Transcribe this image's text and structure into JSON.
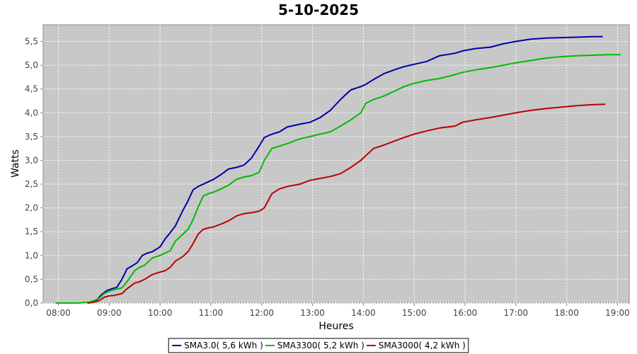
{
  "chart_data": {
    "type": "line",
    "title": "5-10-2025",
    "xlabel": "Heures",
    "ylabel": "Watts",
    "xlim": [
      7.7,
      19.23
    ],
    "ylim": [
      0,
      5.85
    ],
    "x_ticks": [
      "08:00",
      "09:00",
      "10:00",
      "11:00",
      "12:00",
      "13:00",
      "14:00",
      "15:00",
      "16:00",
      "17:00",
      "18:00",
      "19:00"
    ],
    "y_ticks": [
      "0,0",
      "0,5",
      "1,0",
      "1,5",
      "2,0",
      "2,5",
      "3,0",
      "3,5",
      "4,0",
      "4,5",
      "5,0",
      "5,5"
    ],
    "grid": true,
    "legend_position": "bottom-center",
    "series": [
      {
        "name": "SMA3.0( 5,6 kWh )",
        "color": "#0000aa",
        "x": [
          8.58,
          8.65,
          8.75,
          8.85,
          8.95,
          9.05,
          9.15,
          9.25,
          9.35,
          9.45,
          9.55,
          9.65,
          9.75,
          9.85,
          10.0,
          10.1,
          10.2,
          10.3,
          10.45,
          10.55,
          10.65,
          10.75,
          10.85,
          10.95,
          11.05,
          11.2,
          11.35,
          11.5,
          11.65,
          11.8,
          11.95,
          12.05,
          12.2,
          12.35,
          12.5,
          12.75,
          12.95,
          13.15,
          13.35,
          13.55,
          13.75,
          13.95,
          14.05,
          14.2,
          14.4,
          14.6,
          14.8,
          15.0,
          15.25,
          15.5,
          15.8,
          15.95,
          16.2,
          16.5,
          16.75,
          17.0,
          17.3,
          17.6,
          17.9,
          18.2,
          18.5,
          18.7
        ],
        "y": [
          0.0,
          0.03,
          0.06,
          0.18,
          0.26,
          0.3,
          0.33,
          0.5,
          0.72,
          0.78,
          0.85,
          1.0,
          1.05,
          1.08,
          1.18,
          1.35,
          1.48,
          1.62,
          1.95,
          2.15,
          2.38,
          2.45,
          2.5,
          2.55,
          2.6,
          2.7,
          2.82,
          2.85,
          2.9,
          3.05,
          3.3,
          3.48,
          3.55,
          3.6,
          3.7,
          3.76,
          3.8,
          3.9,
          4.05,
          4.28,
          4.48,
          4.55,
          4.6,
          4.7,
          4.82,
          4.9,
          4.97,
          5.02,
          5.08,
          5.2,
          5.25,
          5.3,
          5.35,
          5.38,
          5.45,
          5.5,
          5.55,
          5.57,
          5.58,
          5.59,
          5.6,
          5.6
        ]
      },
      {
        "name": "SMA3300( 5,2 kWh )",
        "color": "#00bb00",
        "x": [
          7.95,
          8.2,
          8.4,
          8.6,
          8.7,
          8.8,
          8.9,
          9.0,
          9.1,
          9.25,
          9.35,
          9.5,
          9.6,
          9.7,
          9.85,
          10.0,
          10.1,
          10.2,
          10.3,
          10.45,
          10.55,
          10.65,
          10.75,
          10.85,
          10.95,
          11.05,
          11.2,
          11.35,
          11.5,
          11.65,
          11.8,
          11.95,
          12.05,
          12.2,
          12.35,
          12.5,
          12.75,
          12.95,
          13.15,
          13.35,
          13.55,
          13.75,
          13.95,
          14.05,
          14.2,
          14.4,
          14.6,
          14.8,
          15.0,
          15.25,
          15.5,
          15.8,
          15.95,
          16.2,
          16.5,
          16.75,
          17.0,
          17.3,
          17.6,
          17.9,
          18.2,
          18.5,
          18.8,
          19.05
        ],
        "y": [
          0.0,
          0.0,
          0.0,
          0.02,
          0.05,
          0.1,
          0.2,
          0.25,
          0.28,
          0.32,
          0.45,
          0.68,
          0.75,
          0.8,
          0.95,
          1.0,
          1.05,
          1.1,
          1.3,
          1.45,
          1.55,
          1.75,
          2.02,
          2.25,
          2.3,
          2.33,
          2.4,
          2.48,
          2.6,
          2.65,
          2.68,
          2.75,
          3.0,
          3.25,
          3.3,
          3.35,
          3.45,
          3.5,
          3.55,
          3.6,
          3.72,
          3.85,
          4.0,
          4.2,
          4.28,
          4.35,
          4.45,
          4.55,
          4.62,
          4.68,
          4.72,
          4.8,
          4.85,
          4.9,
          4.95,
          5.0,
          5.05,
          5.1,
          5.15,
          5.18,
          5.2,
          5.21,
          5.22,
          5.22
        ]
      },
      {
        "name": "SMA3000( 4,2 kWh )",
        "color": "#bb0000",
        "x": [
          8.6,
          8.7,
          8.8,
          8.9,
          9.0,
          9.1,
          9.25,
          9.35,
          9.5,
          9.6,
          9.7,
          9.85,
          10.0,
          10.1,
          10.2,
          10.3,
          10.45,
          10.55,
          10.65,
          10.75,
          10.85,
          10.95,
          11.05,
          11.2,
          11.35,
          11.5,
          11.65,
          11.8,
          11.95,
          12.05,
          12.2,
          12.35,
          12.5,
          12.75,
          12.95,
          13.15,
          13.35,
          13.55,
          13.75,
          13.95,
          14.05,
          14.2,
          14.4,
          14.6,
          14.8,
          15.0,
          15.25,
          15.5,
          15.8,
          15.95,
          16.2,
          16.5,
          16.75,
          17.0,
          17.3,
          17.6,
          17.9,
          18.2,
          18.5,
          18.75
        ],
        "y": [
          0.0,
          0.02,
          0.05,
          0.12,
          0.15,
          0.16,
          0.2,
          0.3,
          0.42,
          0.45,
          0.5,
          0.6,
          0.65,
          0.68,
          0.75,
          0.88,
          0.98,
          1.08,
          1.25,
          1.45,
          1.55,
          1.58,
          1.6,
          1.66,
          1.73,
          1.83,
          1.88,
          1.9,
          1.93,
          2.0,
          2.3,
          2.4,
          2.45,
          2.5,
          2.58,
          2.62,
          2.66,
          2.72,
          2.85,
          3.0,
          3.1,
          3.25,
          3.32,
          3.4,
          3.48,
          3.55,
          3.62,
          3.68,
          3.72,
          3.8,
          3.85,
          3.9,
          3.95,
          4.0,
          4.05,
          4.09,
          4.12,
          4.15,
          4.17,
          4.18
        ]
      }
    ]
  }
}
